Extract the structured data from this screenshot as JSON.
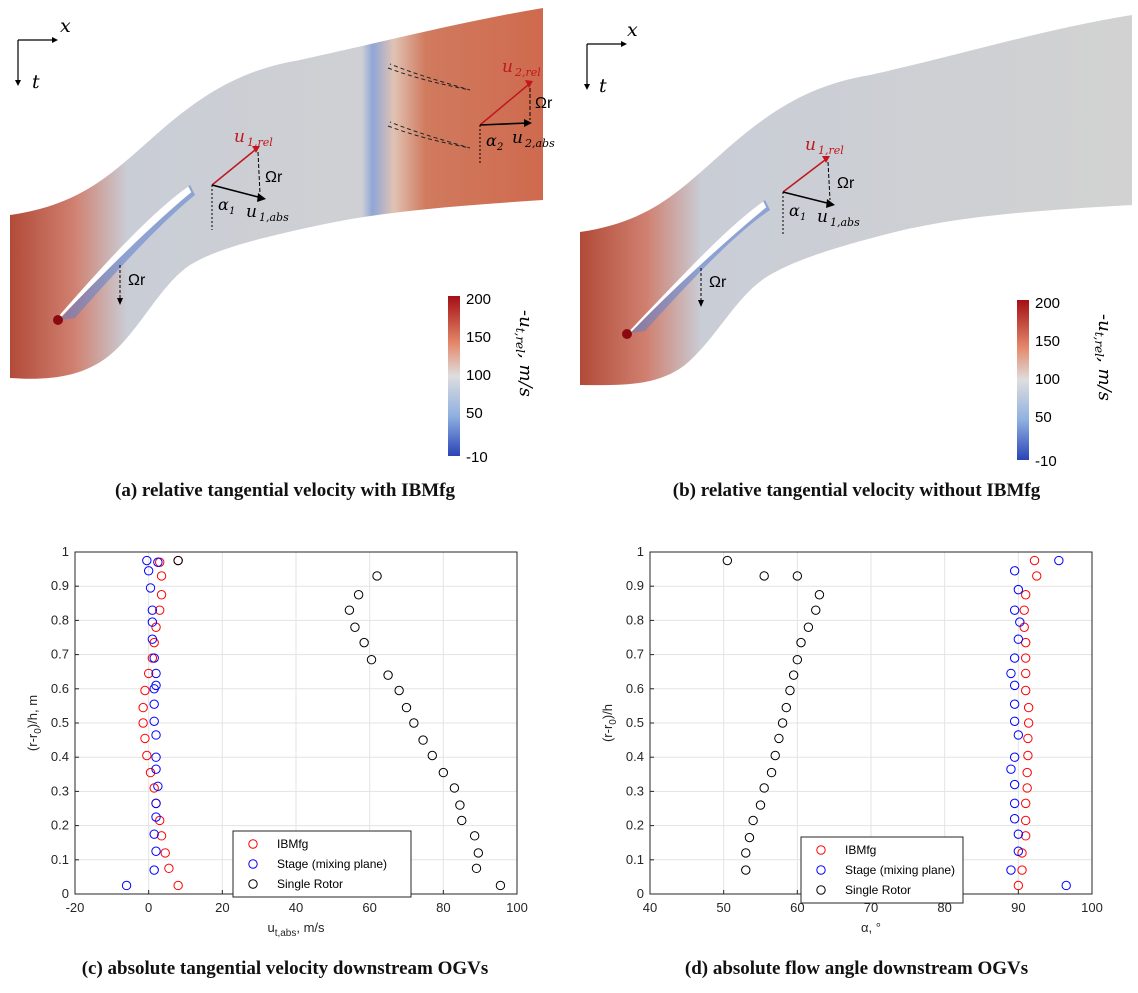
{
  "figure_a": {
    "axis_x": "x",
    "axis_t": "t",
    "label_u1rel": "u",
    "label_u1rel_sub": "1,rel",
    "label_u1abs": "u",
    "label_u1abs_sub": "1,abs",
    "label_u2rel": "u",
    "label_u2rel_sub": "2,rel",
    "label_u2abs": "u",
    "label_u2abs_sub": "2,abs",
    "label_alpha1": "α",
    "label_alpha1_sub": "1",
    "label_alpha2": "α",
    "label_alpha2_sub": "2",
    "label_omega_r": "Ωr",
    "colorbar_ticks": [
      "200",
      "150",
      "100",
      "50",
      "-10"
    ],
    "colorbar_label": "-u",
    "colorbar_label_sub": "t,rel",
    "colorbar_label_unit": ", m/s",
    "caption": "(a) relative tangential velocity with IBMfg"
  },
  "figure_b": {
    "axis_x": "x",
    "axis_t": "t",
    "label_u1rel": "u",
    "label_u1rel_sub": "1,rel",
    "label_u1abs": "u",
    "label_u1abs_sub": "1,abs",
    "label_alpha1": "α",
    "label_alpha1_sub": "1",
    "label_omega_r": "Ωr",
    "colorbar_ticks": [
      "200",
      "150",
      "100",
      "50",
      "-10"
    ],
    "colorbar_label": "-u",
    "colorbar_label_sub": "t,rel",
    "colorbar_label_unit": ", m/s",
    "caption": "(b) relative tangential velocity without IBMfg"
  },
  "colors": {
    "ibmfg": "#ff0000",
    "stage": "#0000ff",
    "single_rotor": "#000000",
    "field_high": "#b2182b",
    "field_mid": "#d6d6d6",
    "field_low": "#2166ac",
    "vector_rel": "#c0161c"
  },
  "chart_data": [
    {
      "type": "scatter",
      "caption": "(c) absolute tangential velocity downstream OGVs",
      "xlabel": "u",
      "xlabel_sub": "t,abs",
      "xlabel_unit": ", m/s",
      "ylabel": "(r-r",
      "ylabel_sub": "0",
      "ylabel_unit": ")/h, m",
      "xlim": [
        -20,
        100
      ],
      "ylim": [
        0,
        1
      ],
      "xticks": [
        "-20",
        "0",
        "20",
        "40",
        "60",
        "80",
        "100"
      ],
      "yticks": [
        "0",
        "0.1",
        "0.2",
        "0.3",
        "0.4",
        "0.5",
        "0.6",
        "0.7",
        "0.8",
        "0.9",
        "1"
      ],
      "grid": true,
      "legend_position": "bottom-center",
      "series": [
        {
          "name": "IBMfg",
          "color": "#ff0000",
          "x": [
            8,
            5.5,
            4.5,
            3.5,
            3,
            2,
            1.5,
            0.5,
            -0.5,
            -1,
            -1.5,
            -1.5,
            -1,
            0,
            1,
            1.5,
            2,
            3,
            3.5,
            3.5,
            3,
            8
          ],
          "y": [
            0.025,
            0.075,
            0.12,
            0.17,
            0.215,
            0.265,
            0.31,
            0.355,
            0.405,
            0.455,
            0.5,
            0.545,
            0.595,
            0.645,
            0.69,
            0.735,
            0.78,
            0.83,
            0.875,
            0.93,
            0.97,
            0.975
          ]
        },
        {
          "name": "Stage (mixing plane)",
          "color": "#0000ff",
          "x": [
            -6,
            1.5,
            2,
            1.5,
            2,
            2,
            2.5,
            2,
            2,
            2,
            1.5,
            1.5,
            1.5,
            2,
            2,
            1.5,
            1,
            1,
            1,
            0.5,
            0,
            2.5,
            -0.5
          ],
          "y": [
            0.025,
            0.07,
            0.125,
            0.175,
            0.225,
            0.265,
            0.315,
            0.365,
            0.4,
            0.465,
            0.505,
            0.555,
            0.6,
            0.61,
            0.645,
            0.69,
            0.745,
            0.795,
            0.83,
            0.895,
            0.945,
            0.97,
            0.975
          ]
        },
        {
          "name": "Single Rotor",
          "color": "#000000",
          "x": [
            95.5,
            89,
            89.5,
            88.5,
            85,
            84.5,
            83,
            80,
            77,
            74.5,
            72,
            70,
            68,
            65,
            60.5,
            58.5,
            56,
            54.5,
            57,
            62,
            8
          ],
          "y": [
            0.025,
            0.075,
            0.12,
            0.17,
            0.215,
            0.26,
            0.31,
            0.355,
            0.405,
            0.45,
            0.5,
            0.545,
            0.595,
            0.64,
            0.685,
            0.735,
            0.78,
            0.83,
            0.875,
            0.93,
            0.975
          ]
        }
      ]
    },
    {
      "type": "scatter",
      "caption": "(d) absolute flow angle downstream OGVs",
      "xlabel": "α, °",
      "ylabel": "(r-r",
      "ylabel_sub": "0",
      "ylabel_unit": ")/h",
      "xlim": [
        40,
        100
      ],
      "ylim": [
        0,
        1
      ],
      "xticks": [
        "40",
        "50",
        "60",
        "70",
        "80",
        "90",
        "100"
      ],
      "yticks": [
        "0",
        "0.1",
        "0.2",
        "0.3",
        "0.4",
        "0.5",
        "0.6",
        "0.7",
        "0.8",
        "0.9",
        "1"
      ],
      "grid": true,
      "legend_position": "bottom-right",
      "series": [
        {
          "name": "IBMfg",
          "color": "#ff0000",
          "x": [
            90,
            90.5,
            90.5,
            91,
            91,
            91,
            91.2,
            91.2,
            91.3,
            91.3,
            91.4,
            91.4,
            91,
            91,
            91,
            91,
            90.8,
            90.8,
            91,
            92.5,
            92.2
          ],
          "y": [
            0.025,
            0.07,
            0.12,
            0.17,
            0.215,
            0.265,
            0.31,
            0.355,
            0.405,
            0.455,
            0.5,
            0.545,
            0.595,
            0.645,
            0.69,
            0.735,
            0.78,
            0.83,
            0.875,
            0.93,
            0.975
          ]
        },
        {
          "name": "Stage (mixing plane)",
          "color": "#0000ff",
          "x": [
            96.5,
            89,
            90,
            90,
            89.5,
            89.5,
            89.5,
            89,
            89.5,
            90,
            89.5,
            89.5,
            89.5,
            89,
            89.5,
            90,
            90.2,
            89.5,
            90,
            89.5,
            95.5
          ],
          "y": [
            0.025,
            0.07,
            0.125,
            0.175,
            0.22,
            0.265,
            0.32,
            0.365,
            0.4,
            0.465,
            0.505,
            0.555,
            0.61,
            0.645,
            0.69,
            0.745,
            0.795,
            0.83,
            0.89,
            0.945,
            0.975
          ]
        },
        {
          "name": "Single Rotor",
          "color": "#000000",
          "x": [
            53,
            53,
            53.5,
            54,
            55,
            55.5,
            56.5,
            57,
            57.5,
            58,
            58.5,
            59,
            59.5,
            60,
            60.5,
            61.5,
            62.5,
            63,
            60,
            55.5,
            50.5
          ],
          "y": [
            0.07,
            0.12,
            0.165,
            0.215,
            0.26,
            0.31,
            0.355,
            0.405,
            0.455,
            0.5,
            0.545,
            0.595,
            0.64,
            0.685,
            0.735,
            0.78,
            0.83,
            0.875,
            0.93,
            0.93,
            0.975
          ]
        }
      ]
    }
  ]
}
